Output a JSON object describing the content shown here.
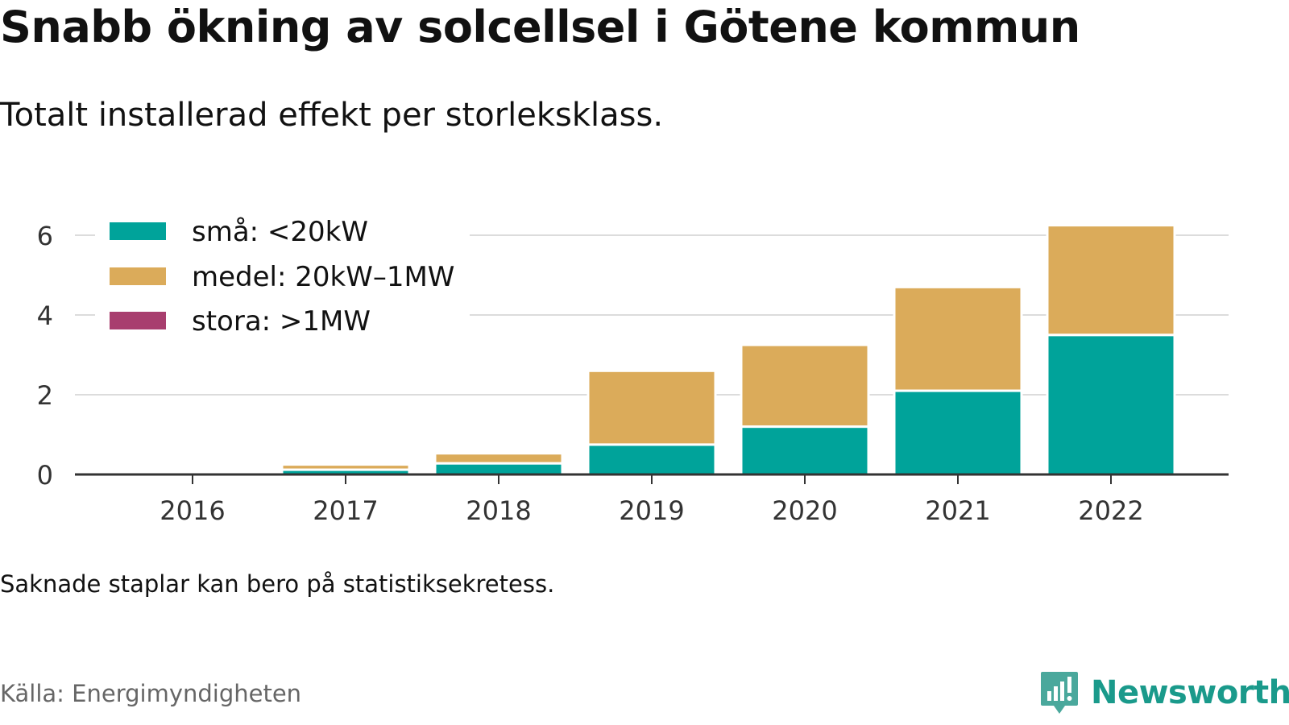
{
  "title": "Snabb ökning av solcellsel i Götene kommun",
  "subtitle": "Totalt installerad effekt per storleksklass.",
  "note": "Saknade staplar kan bero på statistiksekretess.",
  "source": "Källa: Energimyndigheten",
  "brand": {
    "name": "Newsworthy",
    "icon": "newsworthy-logo-icon",
    "color": "#1a9a8b"
  },
  "chart_data": {
    "type": "bar",
    "stacked": true,
    "categories": [
      "2016",
      "2017",
      "2018",
      "2019",
      "2020",
      "2021",
      "2022"
    ],
    "series": [
      {
        "name": "små: <20kW",
        "color": "#00a39a",
        "values": [
          0,
          0.12,
          0.28,
          0.75,
          1.2,
          2.1,
          3.5
        ]
      },
      {
        "name": "medel: 20kW–1MW",
        "color": "#dbab5a",
        "values": [
          0,
          0.13,
          0.25,
          1.85,
          2.05,
          2.6,
          2.75
        ]
      },
      {
        "name": "stora: >1MW",
        "color": "#a83e6e",
        "values": [
          0,
          0,
          0,
          0,
          0,
          0,
          0
        ]
      }
    ],
    "yticks": [
      0,
      2,
      4,
      6
    ],
    "ylim": [
      0,
      6.4
    ],
    "grid": true,
    "legend": "top-left"
  }
}
